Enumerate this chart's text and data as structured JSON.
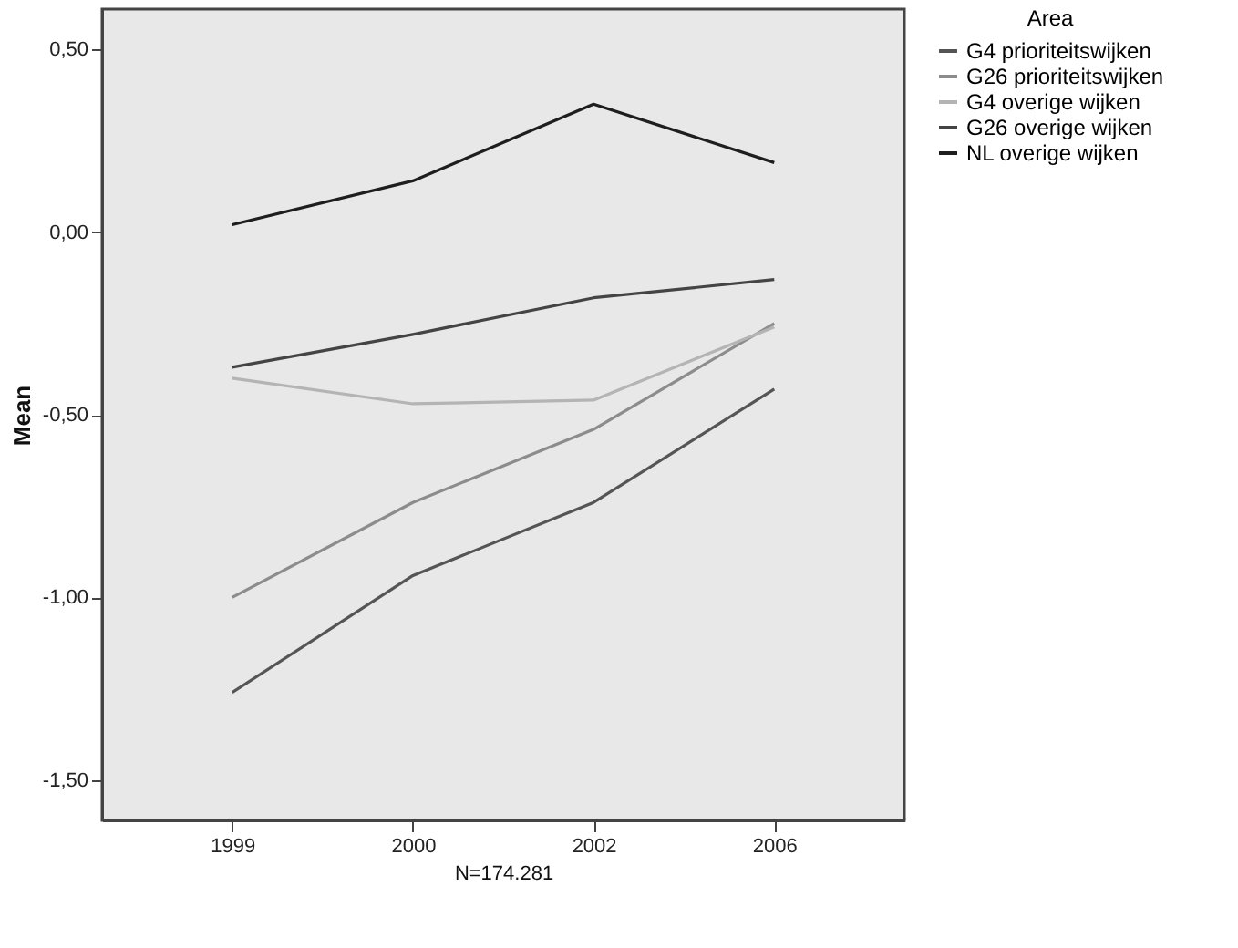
{
  "chart_data": {
    "type": "line",
    "xlabel": "N=174.281",
    "ylabel": "Mean",
    "legend_title": "Area",
    "categories": [
      "1999",
      "2000",
      "2002",
      "2006"
    ],
    "series": [
      {
        "name": "G4 prioriteitswijken",
        "color": "#555555",
        "values": [
          -1.26,
          -0.94,
          -0.74,
          -0.43
        ]
      },
      {
        "name": "G26 prioriteitswijken",
        "color": "#8c8c8c",
        "values": [
          -1.0,
          -0.74,
          -0.54,
          -0.25
        ]
      },
      {
        "name": "G4 overige wijken",
        "color": "#b4b4b4",
        "values": [
          -0.4,
          -0.47,
          -0.46,
          -0.26
        ]
      },
      {
        "name": "G26 overige wijken",
        "color": "#444444",
        "values": [
          -0.37,
          -0.28,
          -0.18,
          -0.13
        ]
      },
      {
        "name": "NL overige wijken",
        "color": "#1e1e1e",
        "values": [
          0.02,
          0.14,
          0.35,
          0.19
        ]
      }
    ],
    "ylim": [
      -1.61,
      0.61
    ],
    "yticks": [
      {
        "value": 0.5,
        "label": "0,50"
      },
      {
        "value": 0.0,
        "label": "0,00"
      },
      {
        "value": -0.5,
        "label": "-0,50"
      },
      {
        "value": -1.0,
        "label": "-1,00"
      },
      {
        "value": -1.5,
        "label": "-1,50"
      }
    ],
    "grid": false,
    "legend": "top right",
    "marker": "none",
    "line_style": "solid"
  }
}
